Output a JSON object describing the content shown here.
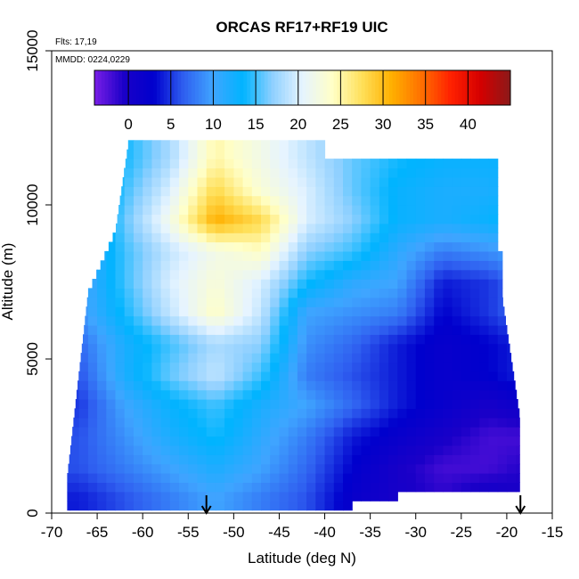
{
  "chart_data": {
    "type": "heatmap",
    "title": "ORCAS RF17+RF19 UIC",
    "annotations": [
      "Flts: 17,19",
      "MMDD: 0224,0229"
    ],
    "xlabel": "Latitude (deg N)",
    "ylabel": "Altitude (m)",
    "xlim": [
      -70,
      -15
    ],
    "ylim": [
      0,
      15000
    ],
    "xticks": [
      -70,
      -65,
      -60,
      -55,
      -50,
      -45,
      -40,
      -35,
      -30,
      -25,
      -20,
      -15
    ],
    "yticks": [
      0,
      5000,
      10000,
      15000
    ],
    "colorbar": {
      "range": [
        -4,
        45
      ],
      "ticks": [
        0,
        5,
        10,
        15,
        20,
        25,
        30,
        35,
        40
      ],
      "placement": "top, inside plot",
      "colors": [
        "#7a1ee6",
        "#1a00c8",
        "#0000cd",
        "#2f5ff0",
        "#3fa5ff",
        "#00b4ff",
        "#8fd0ff",
        "#e6f4ff",
        "#ffffc8",
        "#ffe05a",
        "#ffb000",
        "#ff7000",
        "#ff2000",
        "#d40000",
        "#8b1a1a"
      ]
    },
    "arrows_at_latitude": [
      -53,
      -18.5
    ],
    "profiles": {
      "latitudes": [
        -67,
        -62,
        -57,
        -52,
        -47,
        -42,
        -37,
        -32,
        -27,
        -22,
        -19
      ],
      "altitudes": [
        500,
        1500,
        2500,
        3500,
        4500,
        5500,
        6500,
        7500,
        8500,
        9500,
        10500,
        11500
      ],
      "values": [
        [
          4,
          6,
          8,
          10,
          8,
          6,
          2,
          0,
          -1,
          1,
          0
        ],
        [
          6,
          8,
          10,
          12,
          10,
          7,
          3,
          0,
          -2,
          -2,
          -1
        ],
        [
          6,
          9,
          12,
          14,
          11,
          8,
          4,
          2,
          0,
          -2,
          -2
        ],
        [
          5,
          10,
          13,
          15,
          12,
          10,
          7,
          4,
          2,
          0,
          1
        ],
        [
          6,
          12,
          16,
          19,
          15,
          8,
          6,
          4,
          2,
          3,
          4
        ],
        [
          7,
          12,
          15,
          18,
          17,
          9,
          7,
          4,
          2,
          3,
          4
        ],
        [
          9,
          14,
          19,
          24,
          19,
          10,
          9,
          8,
          3,
          5,
          7
        ],
        [
          9,
          15,
          20,
          23,
          20,
          14,
          11,
          10,
          4,
          5,
          7
        ],
        [
          9,
          15,
          19,
          22,
          24,
          17,
          15,
          11,
          8,
          9,
          10
        ],
        [
          8,
          16,
          22,
          31,
          28,
          20,
          17,
          13,
          12,
          13,
          14
        ],
        [
          8,
          15,
          20,
          28,
          23,
          20,
          16,
          13,
          12,
          12,
          13
        ],
        [
          12,
          14,
          18,
          25,
          22,
          19,
          16,
          14,
          13,
          13,
          13
        ]
      ]
    }
  }
}
